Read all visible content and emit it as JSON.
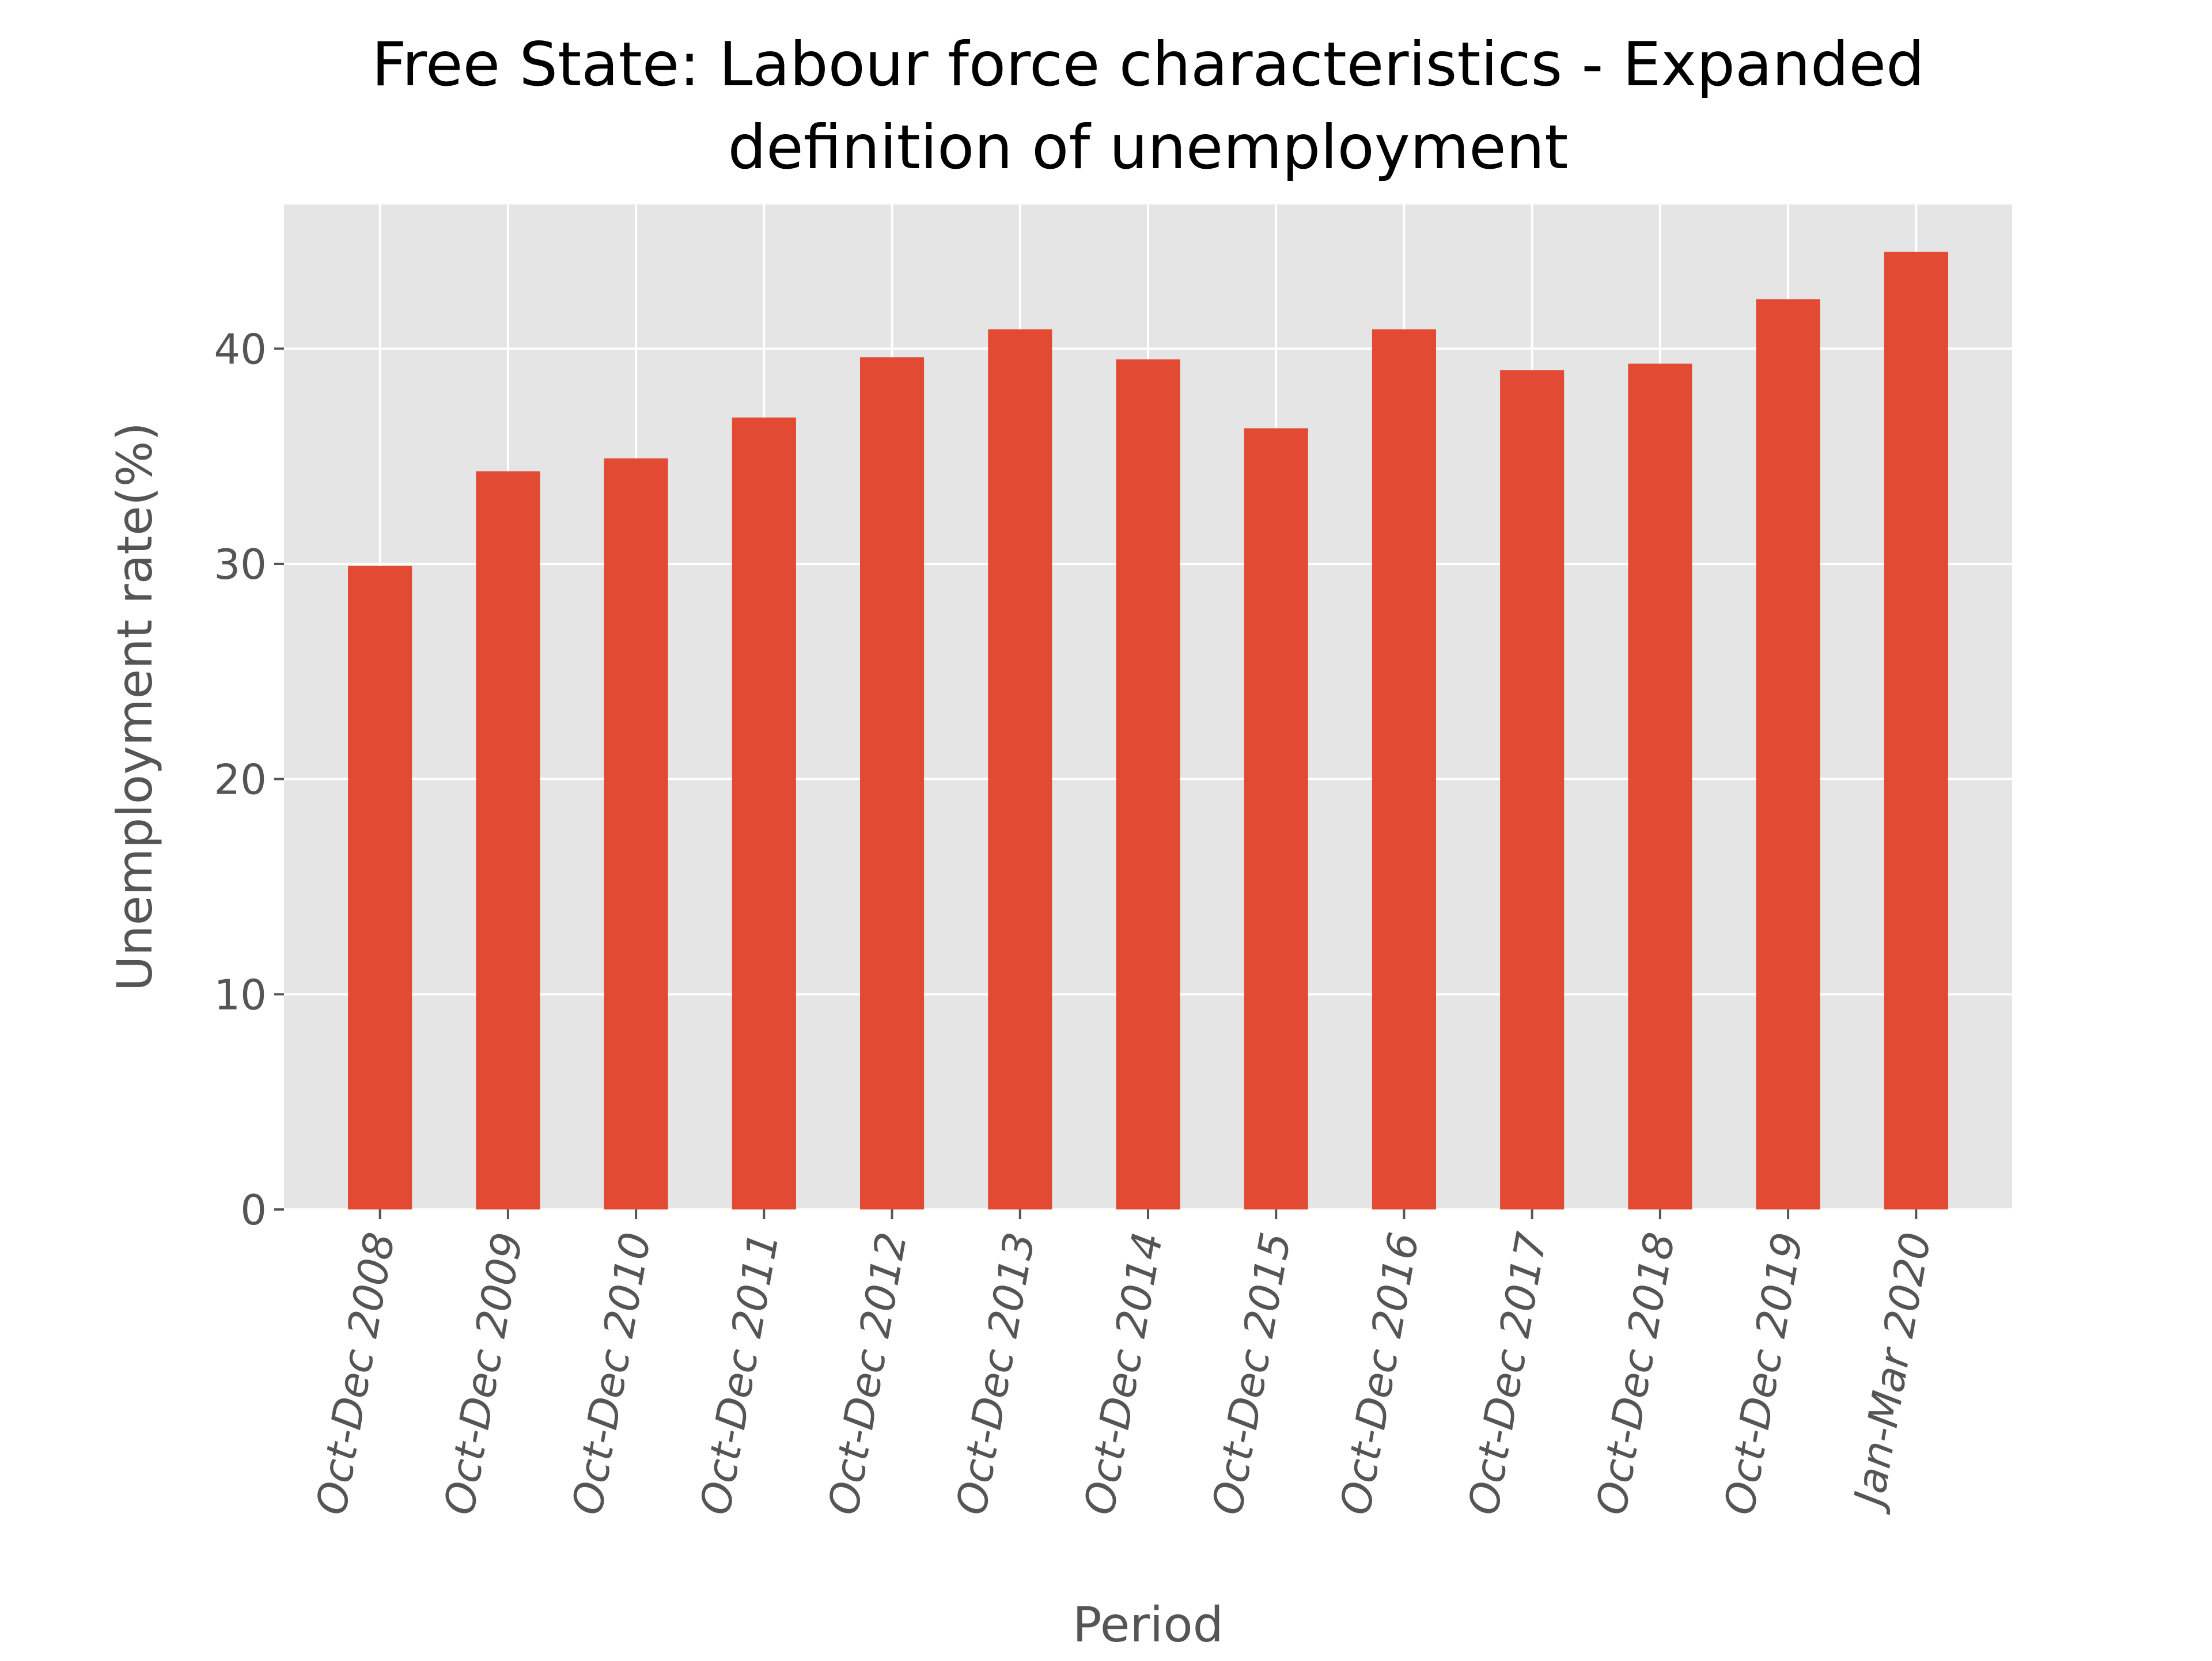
{
  "chart_data": {
    "type": "bar",
    "title_lines": [
      "Free State: Labour force characteristics - Expanded",
      "definition of unemployment"
    ],
    "xlabel": "Period",
    "ylabel": "Unemployment rate(%)",
    "categories": [
      "Oct-Dec 2008",
      "Oct-Dec 2009",
      "Oct-Dec 2010",
      "Oct-Dec 2011",
      "Oct-Dec 2012",
      "Oct-Dec 2013",
      "Oct-Dec 2014",
      "Oct-Dec 2015",
      "Oct-Dec 2016",
      "Oct-Dec 2017",
      "Oct-Dec 2018",
      "Oct-Dec 2019",
      "Jan-Mar 2020"
    ],
    "values": [
      29.9,
      34.3,
      34.9,
      36.8,
      39.6,
      40.9,
      39.5,
      36.3,
      40.9,
      39.0,
      39.3,
      42.3,
      44.5
    ],
    "ylim": [
      0,
      46.7
    ],
    "yticks": [
      0,
      10,
      20,
      30,
      40
    ],
    "bar_color": "#E24A33",
    "plot_background": "#E5E5E5",
    "grid_color": "#FFFFFF",
    "text_color": "#555555",
    "grid": true,
    "legend": "none"
  }
}
